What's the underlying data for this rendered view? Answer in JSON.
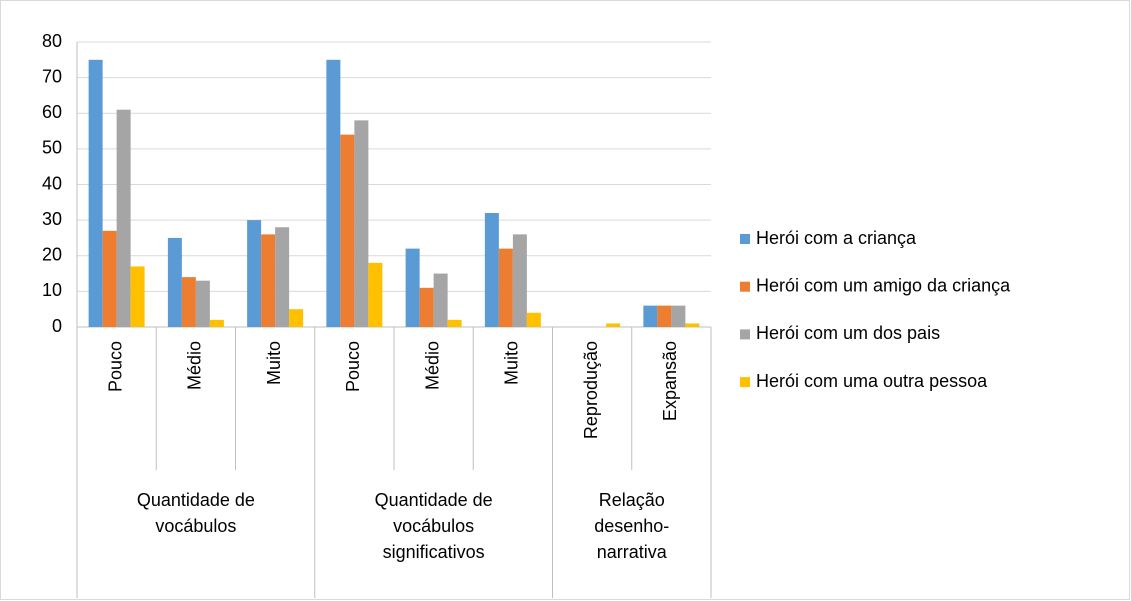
{
  "chart_data": {
    "type": "bar",
    "groups": [
      {
        "label": "Quantidade de vocábulos",
        "categories": [
          "Pouco",
          "Médio",
          "Muito"
        ]
      },
      {
        "label": "Quantidade de vocábulos significativos",
        "categories": [
          "Pouco",
          "Médio",
          "Muito"
        ]
      },
      {
        "label": "Relação desenho-narrativa",
        "categories": [
          "Reprodução",
          "Expansão"
        ]
      }
    ],
    "series": [
      {
        "name": "Herói com a criança",
        "color": "#5b9bd5",
        "values": [
          75,
          25,
          30,
          75,
          22,
          32,
          0,
          6
        ]
      },
      {
        "name": "Herói com um amigo da criança",
        "color": "#ed7d31",
        "values": [
          27,
          14,
          26,
          54,
          11,
          22,
          0,
          6
        ]
      },
      {
        "name": "Herói com um dos pais",
        "color": "#a5a5a5",
        "values": [
          61,
          13,
          28,
          58,
          15,
          26,
          0,
          6
        ]
      },
      {
        "name": "Herói com uma outra pessoa",
        "color": "#ffc000",
        "values": [
          17,
          2,
          5,
          18,
          2,
          4,
          1,
          1
        ]
      }
    ],
    "ylim": [
      0,
      80
    ],
    "yticks": [
      0,
      10,
      20,
      30,
      40,
      50,
      60,
      70,
      80
    ],
    "grid": true,
    "legend": "right"
  }
}
